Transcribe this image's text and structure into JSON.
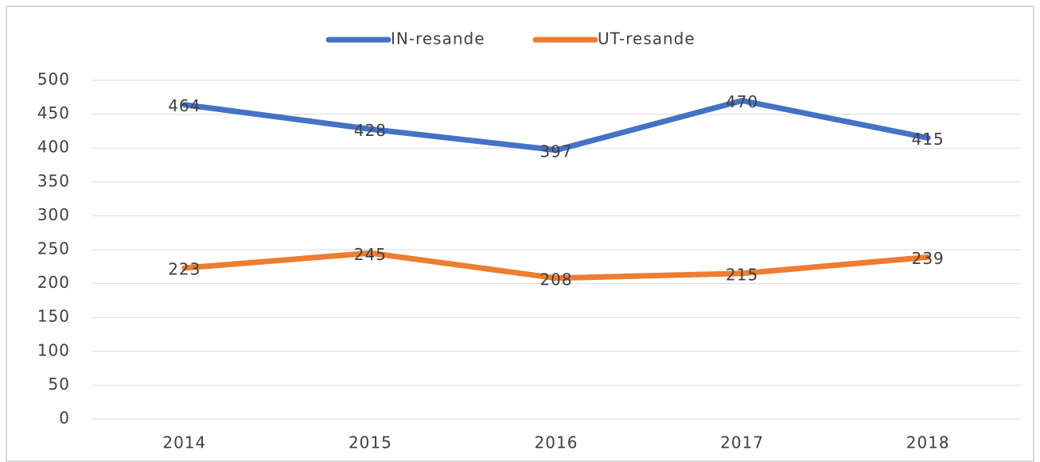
{
  "chart_data": {
    "type": "line",
    "categories": [
      "2014",
      "2015",
      "2016",
      "2017",
      "2018"
    ],
    "series": [
      {
        "name": "IN-resande",
        "color": "#4472c4",
        "values": [
          464,
          428,
          397,
          470,
          415
        ]
      },
      {
        "name": "UT-resande",
        "color": "#ed7d31",
        "values": [
          223,
          245,
          208,
          215,
          239
        ]
      }
    ],
    "ylim": [
      0,
      500
    ],
    "yticks": [
      0,
      50,
      100,
      150,
      200,
      250,
      300,
      350,
      400,
      450,
      500
    ],
    "grid": true,
    "legend": "top"
  }
}
